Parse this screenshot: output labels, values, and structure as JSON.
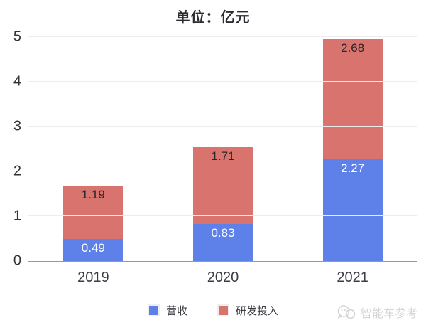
{
  "title": "单位：亿元",
  "colors": {
    "revenue_blue": "#5d80e9",
    "rnd_red": "#d9736d",
    "gridline": "#ececee",
    "baseline": "#97979d",
    "axis_text": "#33333b",
    "watermark_gray": "#d4d4d4"
  },
  "chart_data": {
    "type": "bar",
    "stacked": true,
    "title": "单位：亿元",
    "categories": [
      "2019",
      "2020",
      "2021"
    ],
    "series": [
      {
        "name": "营收",
        "color": "#5d80e9",
        "label_color": "#ffffff",
        "values": [
          0.49,
          0.83,
          2.27
        ]
      },
      {
        "name": "研发投入",
        "color": "#d9736d",
        "label_color": "#26262b",
        "values": [
          1.19,
          1.71,
          2.68
        ]
      }
    ],
    "ylim": [
      0,
      5
    ],
    "yticks": [
      0,
      1,
      2,
      3,
      4,
      5
    ],
    "grid": true,
    "legend_position": "bottom",
    "data_labels": [
      "0.49",
      "0.83",
      "2.27",
      "1.19",
      "1.71",
      "2.68"
    ]
  },
  "legend": {
    "items": [
      {
        "label": "营收",
        "color": "#5d80e9"
      },
      {
        "label": "研发投入",
        "color": "#d9736d"
      }
    ]
  },
  "watermark": {
    "icon": "wechat-icon",
    "text": "智能车参考"
  }
}
